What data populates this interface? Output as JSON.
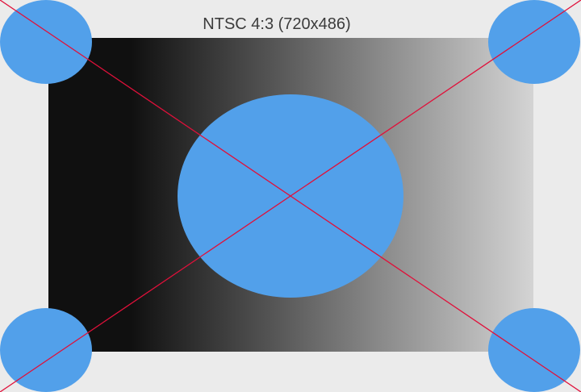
{
  "title": "NTSC 4:3 (720x486)",
  "colors": {
    "background": "#ebebeb",
    "circle": "#52a0ea",
    "diagonal": "#e0103a",
    "gradient_dark": "#101010",
    "gradient_light": "#d4d4d4",
    "title_text": "#3c3c3c"
  },
  "shapes": {
    "corner_circles": [
      "top-left",
      "top-right",
      "bottom-left",
      "bottom-right"
    ],
    "center_circle": "center",
    "diagonals": [
      "top-left-to-bottom-right",
      "top-right-to-bottom-left"
    ]
  }
}
